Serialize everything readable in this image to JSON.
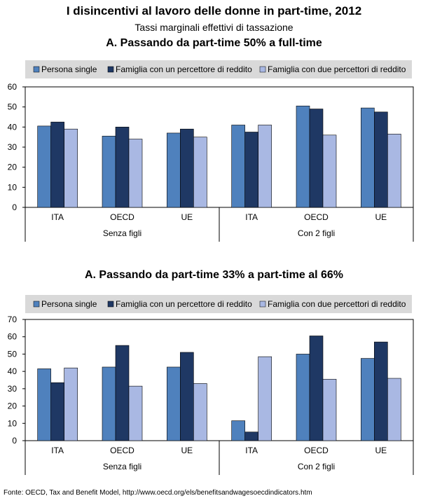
{
  "title": "I disincentivi al lavoro delle donne in part-time, 2012",
  "subtitle": "Tassi marginali effettivi di tassazione",
  "source": "Fonte: OECD, Tax and Benefit Model, http://www.oecd.org/els/benefitsandwagesoecdindicators.htm",
  "colors": {
    "Persona single": "#4f81bd",
    "Famiglia con un percettore di reddito": "#1f3864",
    "Famiglia con due percettori di reddito": "#a9b8e3"
  },
  "chart_data": [
    {
      "type": "bar",
      "title": "A. Passando da part-time 50% a full-time",
      "categories": [
        "ITA",
        "OECD",
        "UE",
        "ITA",
        "OECD",
        "UE"
      ],
      "groups": [
        {
          "label": "Senza figli",
          "categories": [
            "ITA",
            "OECD",
            "UE"
          ]
        },
        {
          "label": "Con 2 figli",
          "categories": [
            "ITA",
            "OECD",
            "UE"
          ]
        }
      ],
      "series": [
        {
          "name": "Persona single",
          "values": [
            40.5,
            35.5,
            37,
            41,
            50.5,
            49.5
          ]
        },
        {
          "name": "Famiglia con un percettore di reddito",
          "values": [
            42.5,
            40,
            39,
            37.5,
            49,
            47.5
          ]
        },
        {
          "name": "Famiglia con due percettori di reddito",
          "values": [
            39,
            34,
            35,
            41,
            36,
            36.5
          ]
        }
      ],
      "ylim": [
        0,
        60
      ],
      "yticks": [
        0,
        10,
        20,
        30,
        40,
        50,
        60
      ],
      "legend": "top",
      "grid": false
    },
    {
      "type": "bar",
      "title": "A. Passando da part-time 33% a part-time al 66%",
      "categories": [
        "ITA",
        "OECD",
        "UE",
        "ITA",
        "OECD",
        "UE"
      ],
      "groups": [
        {
          "label": "Senza figli",
          "categories": [
            "ITA",
            "OECD",
            "UE"
          ]
        },
        {
          "label": "Con 2 figli",
          "categories": [
            "ITA",
            "OECD",
            "UE"
          ]
        }
      ],
      "series": [
        {
          "name": "Persona single",
          "values": [
            41.5,
            42.5,
            42.5,
            11.5,
            50,
            47.5
          ]
        },
        {
          "name": "Famiglia con un percettore di reddito",
          "values": [
            33.5,
            55,
            51,
            5,
            60.5,
            57
          ]
        },
        {
          "name": "Famiglia con due percettori di reddito",
          "values": [
            42,
            31.5,
            33,
            48.5,
            35.5,
            36
          ]
        }
      ],
      "ylim": [
        0,
        70
      ],
      "yticks": [
        0,
        10,
        20,
        30,
        40,
        50,
        60,
        70
      ],
      "legend": "top",
      "grid": false
    }
  ]
}
